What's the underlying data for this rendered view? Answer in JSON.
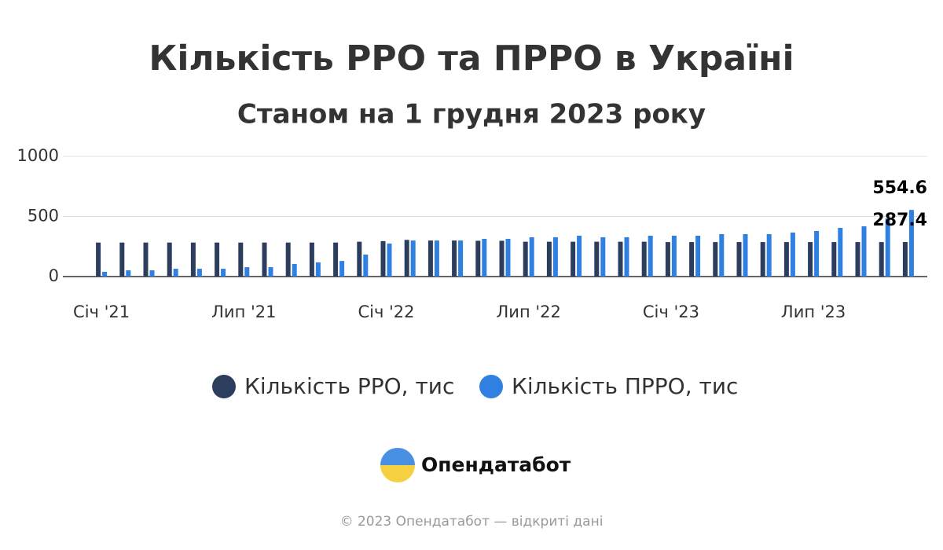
{
  "chart_data": {
    "type": "bar",
    "title": "Кількість РРО та ПРРО в Україні",
    "subtitle": "Станом на 1 грудня 2023 року",
    "categories": [
      "Січ '21",
      null,
      null,
      null,
      null,
      null,
      "Лип '21",
      null,
      null,
      null,
      null,
      null,
      "Січ '22",
      null,
      null,
      null,
      null,
      null,
      "Лип '22",
      null,
      null,
      null,
      null,
      null,
      "Січ '23",
      null,
      null,
      null,
      null,
      null,
      "Лип '23",
      null,
      null,
      null,
      null
    ],
    "series": [
      {
        "name": "Кількість РРО, тис",
        "color": "#2c3d5e",
        "values": [
          283,
          283,
          283,
          283,
          283,
          283,
          283,
          283,
          283,
          283,
          283,
          290,
          295,
          305,
          300,
          300,
          298,
          298,
          290,
          290,
          290,
          290,
          290,
          290,
          287,
          287,
          287,
          287,
          287,
          287,
          287,
          287,
          287,
          287,
          287.4
        ]
      },
      {
        "name": "Кількість ПРРО, тис",
        "color": "#2f80e0",
        "values": [
          40,
          52,
          52,
          65,
          65,
          65,
          78,
          78,
          105,
          118,
          130,
          183,
          275,
          300,
          300,
          300,
          314,
          314,
          327,
          327,
          340,
          327,
          327,
          340,
          340,
          340,
          353,
          353,
          353,
          366,
          379,
          405,
          418,
          484,
          554.6
        ]
      }
    ],
    "ylim": [
      0,
      1000
    ],
    "yticks": [
      0,
      500,
      1000
    ],
    "grid": true,
    "legend": "bottom"
  },
  "branding": {
    "logo_text": "Опендатабот",
    "copyright": "© 2023 Опендатабот — відкриті дані"
  }
}
